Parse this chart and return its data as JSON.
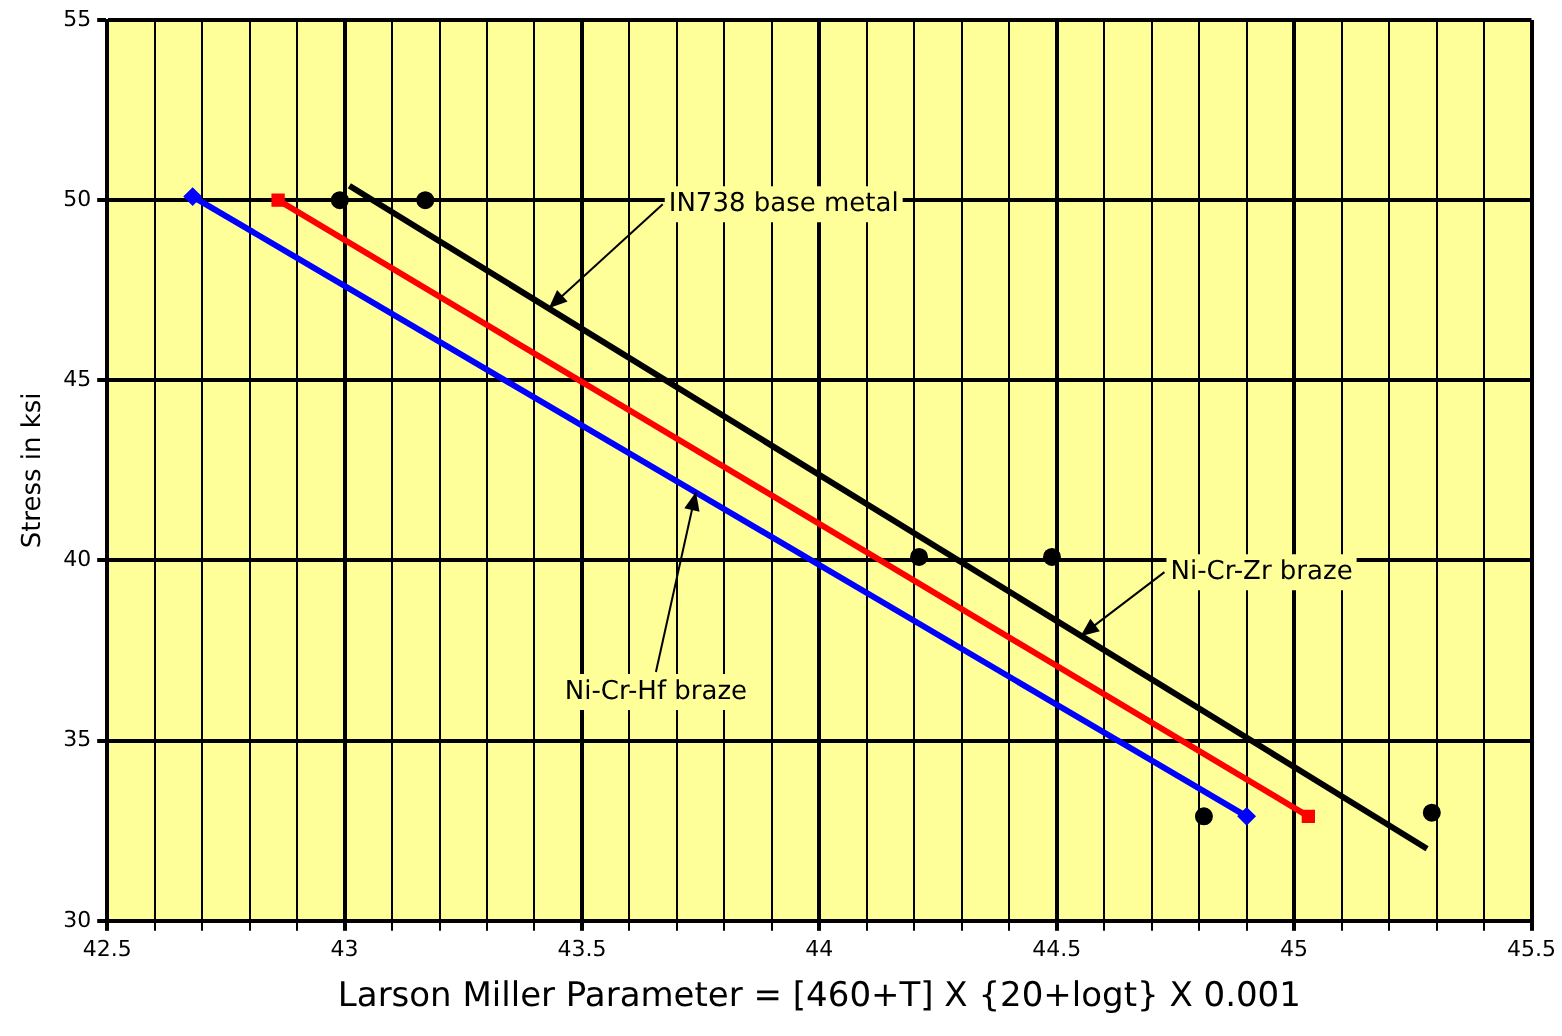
{
  "chart_data": {
    "type": "line",
    "xlabel": "Larson Miller Parameter = [460+T] X {20+logt} X 0.001",
    "ylabel": "Stress in ksi",
    "xlim": [
      42.5,
      45.5
    ],
    "xticks": [
      42.5,
      {
        "value": 42.6,
        "label": null
      },
      {
        "value": 42.7,
        "label": null
      },
      {
        "value": 42.8,
        "label": null
      },
      {
        "value": 42.9,
        "label": null
      },
      43,
      {
        "value": 43.1,
        "label": null
      },
      {
        "value": 43.2,
        "label": null
      },
      {
        "value": 43.3,
        "label": null
      },
      {
        "value": 43.4,
        "label": null
      },
      43.5,
      {
        "value": 43.6,
        "label": null
      },
      {
        "value": 43.7,
        "label": null
      },
      {
        "value": 43.8,
        "label": null
      },
      {
        "value": 43.9,
        "label": null
      },
      44,
      {
        "value": 44.1,
        "label": null
      },
      {
        "value": 44.2,
        "label": null
      },
      {
        "value": 44.3,
        "label": null
      },
      {
        "value": 44.4,
        "label": null
      },
      44.5,
      {
        "value": 44.6,
        "label": null
      },
      {
        "value": 44.7,
        "label": null
      },
      {
        "value": 44.8,
        "label": null
      },
      {
        "value": 44.9,
        "label": null
      },
      45,
      {
        "value": 45.1,
        "label": null
      },
      {
        "value": 45.2,
        "label": null
      },
      {
        "value": 45.3,
        "label": null
      },
      {
        "value": 45.4,
        "label": null
      },
      45.5
    ],
    "ylim": [
      30,
      55
    ],
    "yticks": [
      30,
      35,
      40,
      45,
      50,
      55
    ],
    "grid": true,
    "legend": false,
    "series": [
      {
        "type": "line",
        "color": "#0000ff",
        "marker": "diamond",
        "x": [
          42.68,
          44.9
        ],
        "values": [
          50.1,
          32.9
        ]
      },
      {
        "type": "line",
        "color": "#ff0000",
        "marker": "square",
        "x": [
          42.86,
          45.03
        ],
        "values": [
          50,
          32.9
        ]
      },
      {
        "type": "line",
        "color": "#000000",
        "marker": "none",
        "x": [
          43.01,
          45.28
        ],
        "values": [
          50.4,
          32
        ]
      },
      {
        "type": "scatter",
        "color": "#000000",
        "marker": "circle",
        "x": [
          42.99,
          43.17,
          44.21,
          44.49,
          44.81,
          45.29
        ],
        "values": [
          50,
          50,
          40.1,
          40.1,
          32.9,
          33
        ]
      }
    ],
    "annotations": [
      {
        "text": "IN738 base metal",
        "x": 43.43,
        "y": 47
      },
      {
        "text": "Ni-Cr-Zr braze",
        "x": 44.55,
        "y": 37.9
      },
      {
        "text": "Ni-Cr-Hf braze",
        "x": 43.74,
        "y": 41.9
      }
    ]
  }
}
